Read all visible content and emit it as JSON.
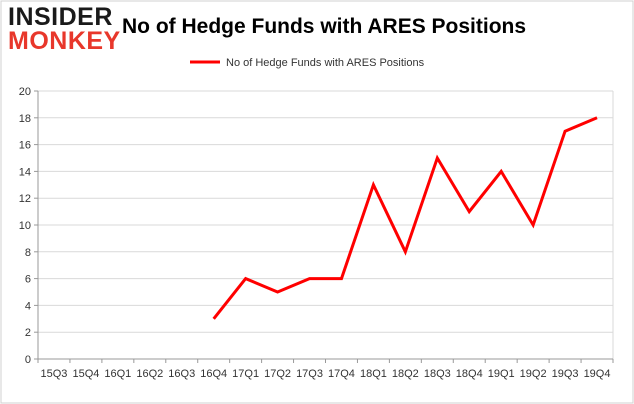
{
  "logo": {
    "line1": "INSIDER",
    "line2": "MONKEY"
  },
  "chart_data": {
    "type": "line",
    "title": "No of Hedge Funds with ARES Positions",
    "categories": [
      "15Q3",
      "15Q4",
      "16Q1",
      "16Q2",
      "16Q3",
      "16Q4",
      "17Q1",
      "17Q2",
      "17Q3",
      "17Q4",
      "18Q1",
      "18Q2",
      "18Q3",
      "18Q4",
      "19Q1",
      "19Q2",
      "19Q3",
      "19Q4"
    ],
    "series": [
      {
        "name": "No of Hedge Funds with ARES Positions",
        "color": "#ff0000",
        "values": [
          null,
          null,
          null,
          null,
          null,
          3,
          6,
          5,
          6,
          6,
          13,
          8,
          15,
          11,
          14,
          10,
          17,
          18
        ]
      }
    ],
    "ylim": [
      0,
      20
    ],
    "yticks": [
      0,
      2,
      4,
      6,
      8,
      10,
      12,
      14,
      16,
      18,
      20
    ],
    "grid": true,
    "legend": "top-center",
    "xlabel": "",
    "ylabel": ""
  }
}
